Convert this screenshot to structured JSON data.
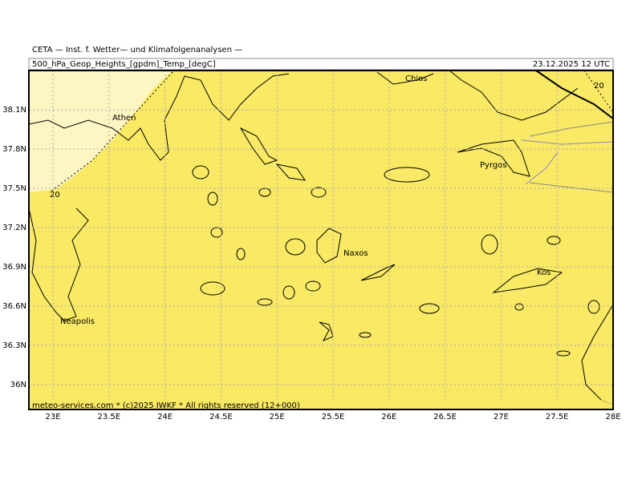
{
  "header": {
    "institute": "CETA — Inst. f. Wetter— und Klimafolgenanalysen —",
    "field": "500_hPa_Geop_Heights_[gpdm]_Temp_[degC]",
    "valid_time": "23.12.2025 12 UTC"
  },
  "map": {
    "lon_ticks": [
      {
        "value": 23,
        "label": "23E"
      },
      {
        "value": 23.5,
        "label": "23.5E"
      },
      {
        "value": 24,
        "label": "24E"
      },
      {
        "value": 24.5,
        "label": "24.5E"
      },
      {
        "value": 25,
        "label": "25E"
      },
      {
        "value": 25.5,
        "label": "25.5E"
      },
      {
        "value": 26,
        "label": "26E"
      },
      {
        "value": 26.5,
        "label": "26.5E"
      },
      {
        "value": 27,
        "label": "27E"
      },
      {
        "value": 27.5,
        "label": "27.5E"
      },
      {
        "value": 28,
        "label": "28E"
      }
    ],
    "lat_ticks": [
      {
        "value": 38.1,
        "label": "38.1N"
      },
      {
        "value": 37.8,
        "label": "37.8N"
      },
      {
        "value": 37.5,
        "label": "37.5N"
      },
      {
        "value": 37.2,
        "label": "37.2N"
      },
      {
        "value": 36.9,
        "label": "36.9N"
      },
      {
        "value": 36.6,
        "label": "36.6N"
      },
      {
        "value": 36.3,
        "label": "36.3N"
      },
      {
        "value": 36,
        "label": "36N"
      }
    ],
    "places": [
      "Chios",
      "Athen",
      "Pyrgos",
      "Naxos",
      "Kos",
      "Neapolis"
    ],
    "contour_labels": [
      20,
      20
    ]
  },
  "footer": "meteo-services.com * (c)2025 IWKF * All rights reserved (12+000)"
}
